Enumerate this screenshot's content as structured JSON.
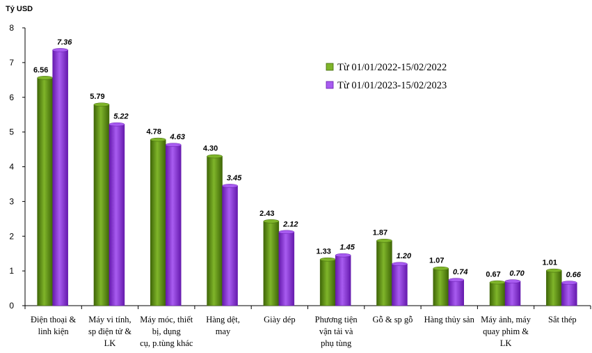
{
  "chart_data": {
    "type": "bar",
    "ylabel": "Tỷ USD",
    "ylim": [
      0,
      8
    ],
    "yticks": [
      0,
      1,
      2,
      3,
      4,
      5,
      6,
      7,
      8
    ],
    "grid": false,
    "legend_position": "top-right",
    "categories": [
      [
        "Điện thoại &",
        "linh kiện"
      ],
      [
        "Máy vi tính,",
        "sp điện tử &",
        "LK"
      ],
      [
        "Máy móc, thiết",
        "bị, dụng",
        "cụ, p.tùng khác"
      ],
      [
        "Hàng dệt,",
        "may"
      ],
      [
        "Giày dép"
      ],
      [
        "Phương tiện",
        "vận tải và",
        "phụ tùng"
      ],
      [
        "Gỗ & sp gỗ"
      ],
      [
        "Hàng thủy sản"
      ],
      [
        "Máy ảnh, máy",
        "quay phim &",
        "LK"
      ],
      [
        "Sắt thép"
      ]
    ],
    "series": [
      {
        "name": "Từ 01/01/2022-15/02/2022",
        "color": "#5a8a12",
        "color_light": "#7fb52a",
        "color_dark": "#3f6607",
        "values": [
          6.56,
          5.79,
          4.78,
          4.3,
          2.43,
          1.33,
          1.87,
          1.07,
          0.67,
          1.01
        ],
        "labels": [
          "6.56",
          "5.79",
          "4.78",
          "4.30",
          "2.43",
          "1.33",
          "1.87",
          "1.07",
          "0.67",
          "1.01"
        ]
      },
      {
        "name": "Từ 01/01/2023-15/02/2023",
        "color": "#8a2be2",
        "color_light": "#a85cf0",
        "color_dark": "#6519ad",
        "values": [
          7.36,
          5.22,
          4.63,
          3.45,
          2.12,
          1.45,
          1.2,
          0.74,
          0.7,
          0.66
        ],
        "labels": [
          "7.36",
          "5.22",
          "4.63",
          "3.45",
          "2.12",
          "1.45",
          "1.20",
          "0.74",
          "0.70",
          "0.66"
        ]
      }
    ]
  }
}
